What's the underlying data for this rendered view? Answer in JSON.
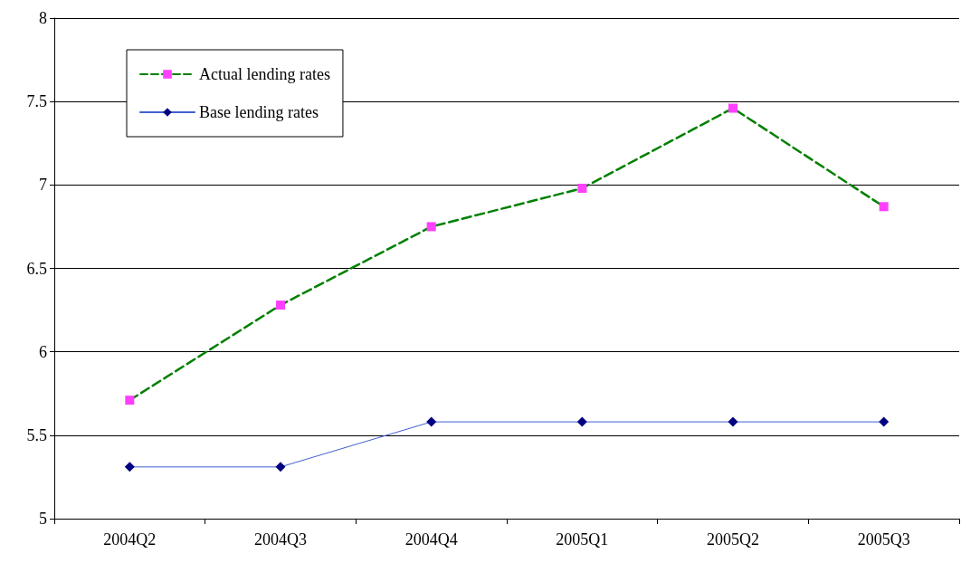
{
  "chart_data": {
    "type": "line",
    "categories": [
      "2004Q2",
      "2004Q3",
      "2004Q4",
      "2005Q1",
      "2005Q2",
      "2005Q3"
    ],
    "series": [
      {
        "name": "Actual lending rates",
        "color": "#008000",
        "colors": [
          "#ff40ff",
          "#ff40ff",
          "#ff40ff",
          "#ff40ff",
          "#ff40ff",
          "#ff40ff"
        ],
        "marker": "square",
        "line_style": "dashed",
        "values": [
          5.71,
          6.28,
          6.75,
          6.98,
          7.46,
          6.87
        ]
      },
      {
        "name": "Base lending rates",
        "color": "#4060d0",
        "colors": [
          "#000080",
          "#000080",
          "#000080",
          "#000080",
          "#000080",
          "#000080"
        ],
        "marker": "diamond",
        "line_style": "solid",
        "values": [
          5.31,
          5.31,
          5.58,
          5.58,
          5.58,
          5.58
        ]
      }
    ],
    "ylim": [
      5,
      8
    ],
    "yticks": [
      5,
      5.5,
      6,
      6.5,
      7,
      7.5,
      8
    ],
    "grid": "y",
    "legend": "top left"
  }
}
